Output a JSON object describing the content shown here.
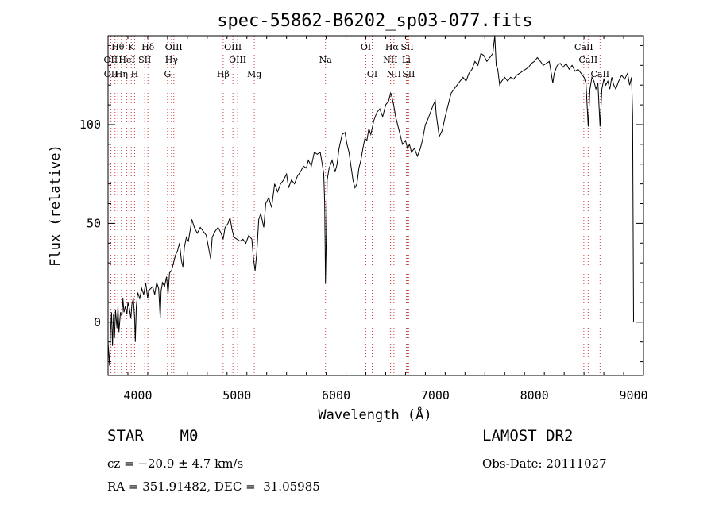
{
  "chart_data": {
    "type": "line",
    "title": "spec-55862-B6202_sp03-077.fits",
    "xlabel": "Wavelength (Å)",
    "ylabel": "Flux (relative)",
    "xlim": [
      3700,
      9100
    ],
    "ylim": [
      -27,
      145
    ],
    "x_ticks": [
      4000,
      5000,
      6000,
      7000,
      8000,
      9000
    ],
    "y_ticks": [
      0,
      50,
      100
    ],
    "grid": false,
    "series": [
      {
        "points": [
          [
            3700,
            -10
          ],
          [
            3715,
            -22
          ],
          [
            3725,
            -5
          ],
          [
            3735,
            5
          ],
          [
            3745,
            -12
          ],
          [
            3755,
            4
          ],
          [
            3765,
            -8
          ],
          [
            3775,
            6
          ],
          [
            3790,
            -3
          ],
          [
            3800,
            8
          ],
          [
            3810,
            -5
          ],
          [
            3825,
            5
          ],
          [
            3840,
            3
          ],
          [
            3850,
            12
          ],
          [
            3860,
            5
          ],
          [
            3875,
            8
          ],
          [
            3890,
            4
          ],
          [
            3900,
            10
          ],
          [
            3915,
            7
          ],
          [
            3930,
            2
          ],
          [
            3940,
            9
          ],
          [
            3955,
            12
          ],
          [
            3968,
            2
          ],
          [
            3975,
            -10
          ],
          [
            3985,
            8
          ],
          [
            4000,
            15
          ],
          [
            4020,
            12
          ],
          [
            4040,
            17
          ],
          [
            4060,
            14
          ],
          [
            4080,
            20
          ],
          [
            4100,
            12
          ],
          [
            4110,
            16
          ],
          [
            4130,
            17
          ],
          [
            4150,
            18
          ],
          [
            4170,
            14
          ],
          [
            4190,
            20
          ],
          [
            4210,
            17
          ],
          [
            4226,
            2
          ],
          [
            4235,
            16
          ],
          [
            4250,
            20
          ],
          [
            4270,
            18
          ],
          [
            4290,
            23
          ],
          [
            4305,
            14
          ],
          [
            4320,
            25
          ],
          [
            4340,
            26
          ],
          [
            4360,
            30
          ],
          [
            4380,
            34
          ],
          [
            4400,
            36
          ],
          [
            4420,
            40
          ],
          [
            4440,
            31
          ],
          [
            4455,
            28
          ],
          [
            4470,
            38
          ],
          [
            4490,
            43
          ],
          [
            4510,
            41
          ],
          [
            4530,
            47
          ],
          [
            4545,
            52
          ],
          [
            4570,
            48
          ],
          [
            4600,
            45
          ],
          [
            4630,
            48
          ],
          [
            4660,
            46
          ],
          [
            4690,
            44
          ],
          [
            4720,
            36
          ],
          [
            4735,
            32
          ],
          [
            4750,
            43
          ],
          [
            4780,
            46
          ],
          [
            4810,
            48
          ],
          [
            4840,
            45
          ],
          [
            4861,
            42
          ],
          [
            4880,
            48
          ],
          [
            4910,
            50
          ],
          [
            4930,
            53
          ],
          [
            4950,
            47
          ],
          [
            4970,
            43
          ],
          [
            5000,
            42
          ],
          [
            5030,
            41
          ],
          [
            5060,
            42
          ],
          [
            5090,
            40
          ],
          [
            5120,
            44
          ],
          [
            5150,
            42
          ],
          [
            5167,
            32
          ],
          [
            5183,
            26
          ],
          [
            5200,
            35
          ],
          [
            5220,
            52
          ],
          [
            5240,
            55
          ],
          [
            5270,
            48
          ],
          [
            5290,
            60
          ],
          [
            5320,
            63
          ],
          [
            5350,
            58
          ],
          [
            5380,
            70
          ],
          [
            5410,
            66
          ],
          [
            5440,
            70
          ],
          [
            5470,
            72
          ],
          [
            5500,
            75
          ],
          [
            5520,
            68
          ],
          [
            5550,
            72
          ],
          [
            5580,
            70
          ],
          [
            5610,
            74
          ],
          [
            5640,
            76
          ],
          [
            5670,
            79
          ],
          [
            5700,
            78
          ],
          [
            5720,
            82
          ],
          [
            5750,
            79
          ],
          [
            5780,
            86
          ],
          [
            5810,
            85
          ],
          [
            5840,
            86
          ],
          [
            5860,
            80
          ],
          [
            5875,
            75
          ],
          [
            5885,
            60
          ],
          [
            5893,
            20
          ],
          [
            5900,
            40
          ],
          [
            5910,
            72
          ],
          [
            5930,
            78
          ],
          [
            5960,
            82
          ],
          [
            5990,
            76
          ],
          [
            6010,
            80
          ],
          [
            6030,
            88
          ],
          [
            6060,
            95
          ],
          [
            6090,
            96
          ],
          [
            6110,
            90
          ],
          [
            6130,
            86
          ],
          [
            6150,
            79
          ],
          [
            6170,
            72
          ],
          [
            6190,
            68
          ],
          [
            6210,
            70
          ],
          [
            6230,
            78
          ],
          [
            6250,
            82
          ],
          [
            6270,
            88
          ],
          [
            6290,
            93
          ],
          [
            6310,
            92
          ],
          [
            6330,
            98
          ],
          [
            6350,
            95
          ],
          [
            6380,
            102
          ],
          [
            6410,
            106
          ],
          [
            6440,
            108
          ],
          [
            6470,
            104
          ],
          [
            6500,
            110
          ],
          [
            6530,
            112
          ],
          [
            6550,
            116
          ],
          [
            6563,
            114
          ],
          [
            6580,
            110
          ],
          [
            6600,
            104
          ],
          [
            6620,
            100
          ],
          [
            6640,
            96
          ],
          [
            6670,
            90
          ],
          [
            6700,
            92
          ],
          [
            6720,
            88
          ],
          [
            6740,
            90
          ],
          [
            6760,
            86
          ],
          [
            6790,
            88
          ],
          [
            6820,
            84
          ],
          [
            6850,
            88
          ],
          [
            6870,
            92
          ],
          [
            6900,
            100
          ],
          [
            6920,
            102
          ],
          [
            6950,
            106
          ],
          [
            6980,
            110
          ],
          [
            7000,
            112
          ],
          [
            7010,
            105
          ],
          [
            7040,
            94
          ],
          [
            7070,
            97
          ],
          [
            7100,
            104
          ],
          [
            7130,
            110
          ],
          [
            7160,
            116
          ],
          [
            7190,
            118
          ],
          [
            7220,
            120
          ],
          [
            7250,
            122
          ],
          [
            7280,
            124
          ],
          [
            7310,
            122
          ],
          [
            7340,
            126
          ],
          [
            7370,
            128
          ],
          [
            7400,
            132
          ],
          [
            7430,
            130
          ],
          [
            7460,
            136
          ],
          [
            7490,
            135
          ],
          [
            7520,
            132
          ],
          [
            7550,
            134
          ],
          [
            7580,
            136
          ],
          [
            7600,
            145
          ],
          [
            7615,
            130
          ],
          [
            7630,
            128
          ],
          [
            7650,
            120
          ],
          [
            7670,
            122
          ],
          [
            7700,
            124
          ],
          [
            7730,
            122
          ],
          [
            7760,
            124
          ],
          [
            7790,
            123
          ],
          [
            7820,
            125
          ],
          [
            7850,
            126
          ],
          [
            7880,
            127
          ],
          [
            7910,
            128
          ],
          [
            7940,
            129
          ],
          [
            7970,
            131
          ],
          [
            8000,
            132
          ],
          [
            8030,
            134
          ],
          [
            8060,
            132
          ],
          [
            8090,
            130
          ],
          [
            8120,
            131
          ],
          [
            8150,
            132
          ],
          [
            8170,
            126
          ],
          [
            8185,
            121
          ],
          [
            8200,
            126
          ],
          [
            8230,
            130
          ],
          [
            8260,
            131
          ],
          [
            8290,
            129
          ],
          [
            8320,
            131
          ],
          [
            8350,
            128
          ],
          [
            8380,
            130
          ],
          [
            8410,
            127
          ],
          [
            8440,
            128
          ],
          [
            8470,
            126
          ],
          [
            8500,
            124
          ],
          [
            8520,
            121
          ],
          [
            8542,
            99
          ],
          [
            8560,
            118
          ],
          [
            8580,
            124
          ],
          [
            8600,
            122
          ],
          [
            8620,
            118
          ],
          [
            8640,
            121
          ],
          [
            8662,
            99
          ],
          [
            8680,
            118
          ],
          [
            8700,
            123
          ],
          [
            8720,
            120
          ],
          [
            8740,
            122
          ],
          [
            8760,
            118
          ],
          [
            8780,
            124
          ],
          [
            8800,
            120
          ],
          [
            8820,
            118
          ],
          [
            8850,
            122
          ],
          [
            8880,
            125
          ],
          [
            8910,
            123
          ],
          [
            8940,
            126
          ],
          [
            8960,
            120
          ],
          [
            8980,
            124
          ],
          [
            8990,
            105
          ],
          [
            9000,
            0
          ]
        ]
      }
    ],
    "line_labels": [
      {
        "text": "Hθ",
        "wl": 3798,
        "row": 1
      },
      {
        "text": "K",
        "wl": 3934,
        "row": 1
      },
      {
        "text": "Hδ",
        "wl": 4102,
        "row": 1
      },
      {
        "text": "OIII",
        "wl": 4363,
        "row": 1
      },
      {
        "text": "OIII",
        "wl": 4959,
        "row": 1
      },
      {
        "text": "OI",
        "wl": 6300,
        "row": 1
      },
      {
        "text": "Hα",
        "wl": 6563,
        "row": 1
      },
      {
        "text": "SII",
        "wl": 6717,
        "row": 1
      },
      {
        "text": "CaII",
        "wl": 8498,
        "row": 1
      },
      {
        "text": "OII",
        "wl": 3727,
        "row": 2
      },
      {
        "text": "HeI",
        "wl": 3889,
        "row": 2
      },
      {
        "text": "SII",
        "wl": 4070,
        "row": 2
      },
      {
        "text": "Hγ",
        "wl": 4340,
        "row": 2
      },
      {
        "text": "OIII",
        "wl": 5007,
        "row": 2
      },
      {
        "text": "Na",
        "wl": 5893,
        "row": 2
      },
      {
        "text": "NII",
        "wl": 6548,
        "row": 2
      },
      {
        "text": "Li",
        "wl": 6708,
        "row": 2
      },
      {
        "text": "CaII",
        "wl": 8542,
        "row": 2
      },
      {
        "text": "OII",
        "wl": 3729,
        "row": 3
      },
      {
        "text": "Hη",
        "wl": 3835,
        "row": 3
      },
      {
        "text": "H",
        "wl": 3968,
        "row": 3
      },
      {
        "text": "G",
        "wl": 4300,
        "row": 3
      },
      {
        "text": "Hβ",
        "wl": 4861,
        "row": 3
      },
      {
        "text": "Mg",
        "wl": 5175,
        "row": 3
      },
      {
        "text": "OI",
        "wl": 6364,
        "row": 3
      },
      {
        "text": "NII",
        "wl": 6583,
        "row": 3
      },
      {
        "text": "SII",
        "wl": 6731,
        "row": 3
      },
      {
        "text": "CaII",
        "wl": 8662,
        "row": 3
      }
    ],
    "line_marker_wavelengths": [
      3727,
      3729,
      3770,
      3798,
      3835,
      3889,
      3934,
      3968,
      4070,
      4102,
      4300,
      4340,
      4363,
      4861,
      4959,
      5007,
      5175,
      5893,
      6300,
      6364,
      6548,
      6563,
      6583,
      6708,
      6717,
      6731,
      8498,
      8542,
      8662
    ]
  },
  "info": {
    "object_class": "STAR    M0",
    "survey": "LAMOST DR2",
    "cz": "cz = −20.9 ± 4.7 km/s",
    "obs_date": "Obs-Date: 20111027",
    "coords": "RA = 351.91482, DEC =  31.05985"
  },
  "colors": {
    "spectrum": "#000000",
    "marker_line": "#c84040"
  }
}
